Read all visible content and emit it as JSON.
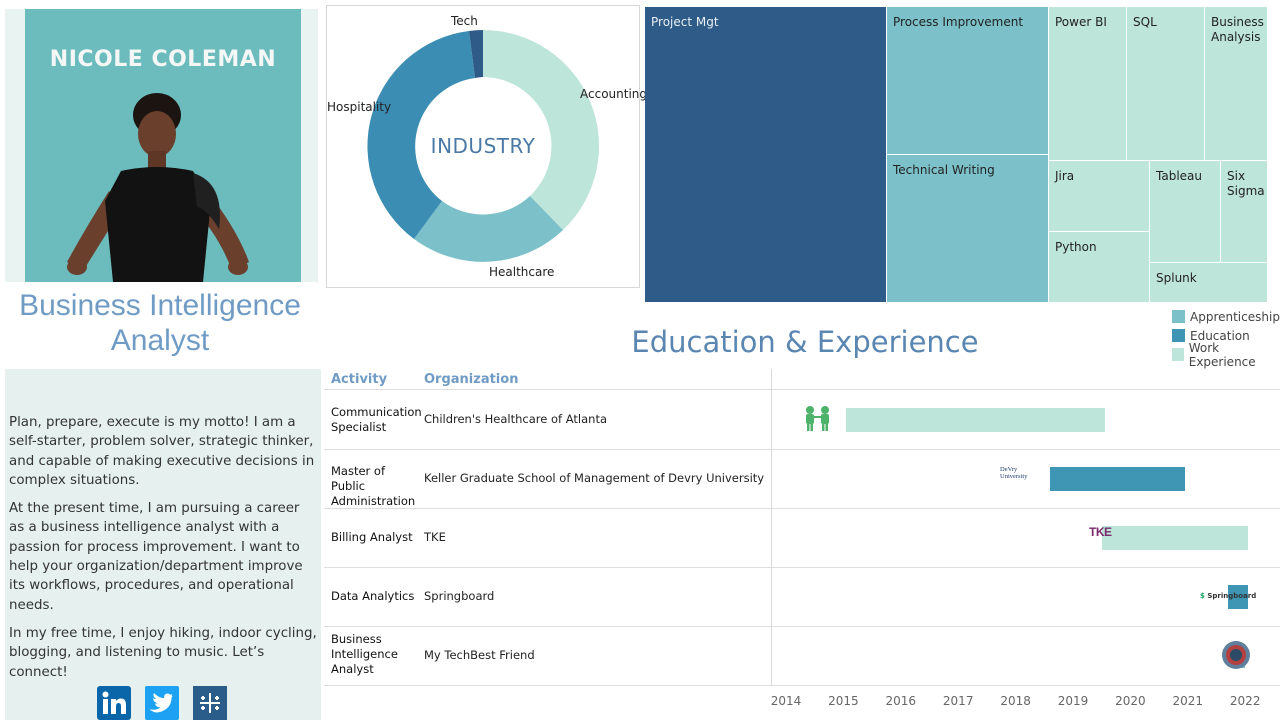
{
  "profile": {
    "name": "NICOLE COLEMAN",
    "job_title_line1": "Business Intelligence",
    "job_title_line2": "Analyst",
    "bio": [
      "Plan, prepare, execute is my motto! I am a self-starter, problem solver, strategic thinker, and capable of making executive decisions in complex situations.",
      "At the present time, I am pursuing a career as a business intelligence analyst with a passion for process improvement. I want to help your organization/department improve its workflows, procedures, and operational needs.",
      "In my free time, I enjoy hiking, indoor cycling, blogging, and listening to music. Let’s connect!"
    ],
    "social": [
      "linkedin-icon",
      "twitter-icon",
      "tableau-icon"
    ]
  },
  "industry": {
    "center_label": "INDUSTRY",
    "labels": {
      "tech": "Tech",
      "accounting": "Accounting",
      "hospitality": "Hospitality",
      "healthcare": "Healthcare"
    }
  },
  "treemap": {
    "items": [
      "Project Mgt",
      "Process Improvement",
      "Technical Writing",
      "Power BI",
      "SQL",
      "Business Analysis",
      "Jira",
      "Tableau",
      "Six Sigma",
      "Python",
      "Splunk"
    ]
  },
  "legend": {
    "items": [
      {
        "label": "Apprenticeship",
        "color": "#7cc1ca"
      },
      {
        "label": "Education",
        "color": "#3e95b4"
      },
      {
        "label": "Work Experience",
        "color": "#bde5da"
      }
    ]
  },
  "section_title": "Education & Experience",
  "timeline": {
    "headers": {
      "activity": "Activity",
      "organization": "Organization"
    },
    "axis_years": [
      "2014",
      "2015",
      "2016",
      "2017",
      "2018",
      "2019",
      "2020",
      "2021",
      "2022"
    ],
    "rows": [
      {
        "activity": "Communication Specialist",
        "organization": "Children's Healthcare of Atlanta",
        "type": "Work Experience",
        "start": 2015.05,
        "end": 2019.55,
        "logo": "healthcare-logo-icon"
      },
      {
        "activity": "Master of Public Administration",
        "organization": "Keller Graduate School of Management of Devry University",
        "type": "Education",
        "start": 2018.6,
        "end": 2020.95,
        "logo": "devry-logo-icon",
        "logo_text": "DeVry University"
      },
      {
        "activity": "Billing Analyst",
        "organization": "TKE",
        "type": "Work Experience",
        "start": 2019.5,
        "end": 2022.05,
        "logo": "tke-logo-icon",
        "logo_text": "TKE"
      },
      {
        "activity": "Data Analytics",
        "organization": "Springboard",
        "type": "Education",
        "start": 2021.7,
        "end": 2022.05,
        "logo": "springboard-logo-icon",
        "logo_text": "Springboard"
      },
      {
        "activity": "Business Intelligence Analyst",
        "organization": "My TechBest Friend",
        "type": "Apprenticeship",
        "start": 2021.75,
        "end": 2022.0,
        "logo": "techbest-logo-icon"
      }
    ]
  },
  "colors": {
    "primary_blue": "#2e5b87",
    "mid_teal": "#3e95b4",
    "light_teal": "#7cc1ca",
    "pale_teal": "#bde5da",
    "title_blue": "#6f9bc4"
  }
}
